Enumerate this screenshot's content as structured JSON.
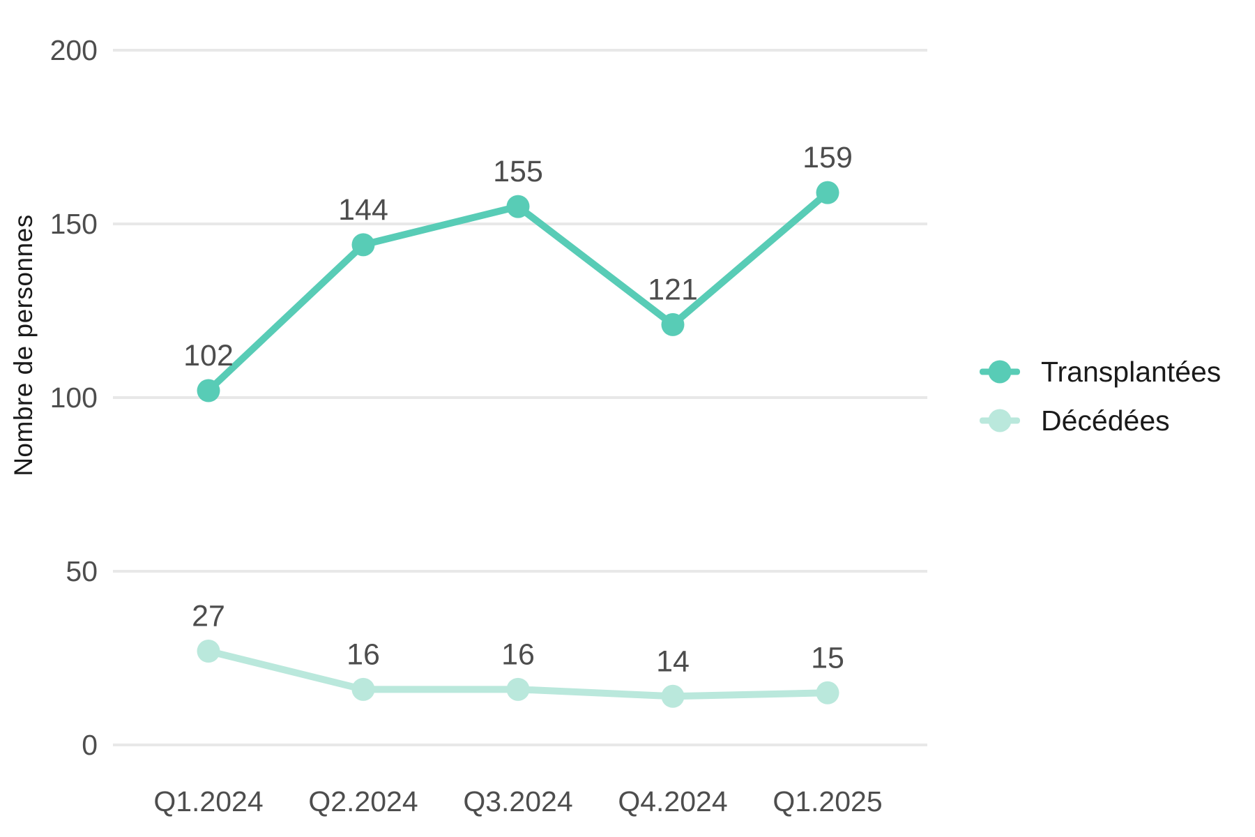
{
  "chart_data": {
    "type": "line",
    "categories": [
      "Q1.2024",
      "Q2.2024",
      "Q3.2024",
      "Q4.2024",
      "Q1.2025"
    ],
    "series": [
      {
        "name": "Transplantées",
        "values": [
          102,
          144,
          155,
          121,
          159
        ],
        "color": "#58CCB6"
      },
      {
        "name": "Décédées",
        "values": [
          27,
          16,
          16,
          14,
          15
        ],
        "color": "#BAE8DC"
      }
    ],
    "title": "",
    "xlabel": "",
    "ylabel": "Nombre de personnes",
    "ylim": [
      0,
      200
    ],
    "yticks": [
      0,
      50,
      100,
      150,
      200
    ],
    "grid": "horizontal-only",
    "legend_position": "right",
    "point_labels_visible": true
  },
  "colors": {
    "background": "#FFFFFF",
    "gridline": "#E8E8E8",
    "tick_text": "#4D4D4D",
    "point_label_text": "#4D4D4D",
    "axis_title_text": "#1A1A1A",
    "legend_text": "#1A1A1A"
  }
}
